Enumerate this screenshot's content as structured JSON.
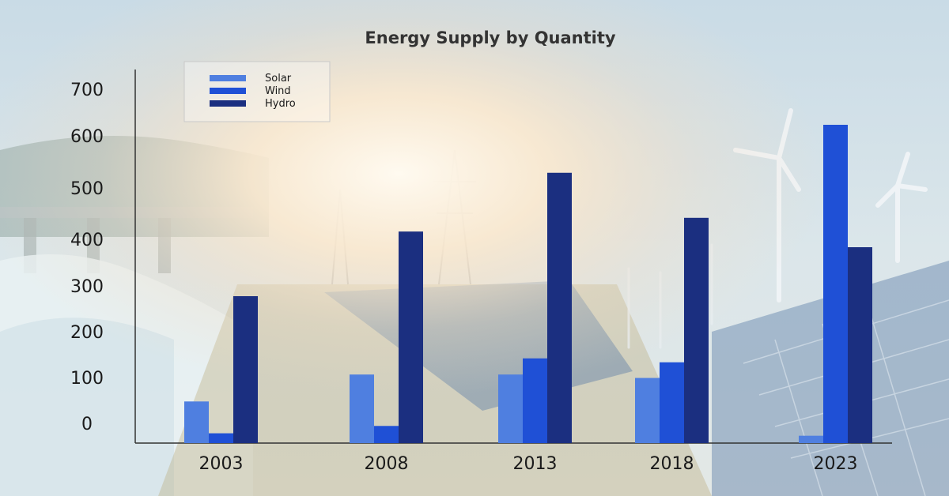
{
  "chart_data": {
    "type": "bar",
    "title": "Energy Supply by Quantity",
    "xlabel": "",
    "ylabel": "",
    "categories": [
      "2003",
      "2008",
      "2013",
      "2018",
      "2023"
    ],
    "series": [
      {
        "name": "Solar",
        "color": "#4f7fe0",
        "values": [
          85,
          140,
          140,
          133,
          15
        ]
      },
      {
        "name": "Wind",
        "color": "#1f50d6",
        "values": [
          20,
          35,
          173,
          165,
          650
        ]
      },
      {
        "name": "Hydro",
        "color": "#1b2f80",
        "values": [
          300,
          432,
          552,
          460,
          400
        ]
      }
    ],
    "yticks": [
      "700",
      "600",
      "500",
      "400",
      "300",
      "200",
      "100",
      "0"
    ],
    "grid": false,
    "legend_position": "top-left"
  }
}
